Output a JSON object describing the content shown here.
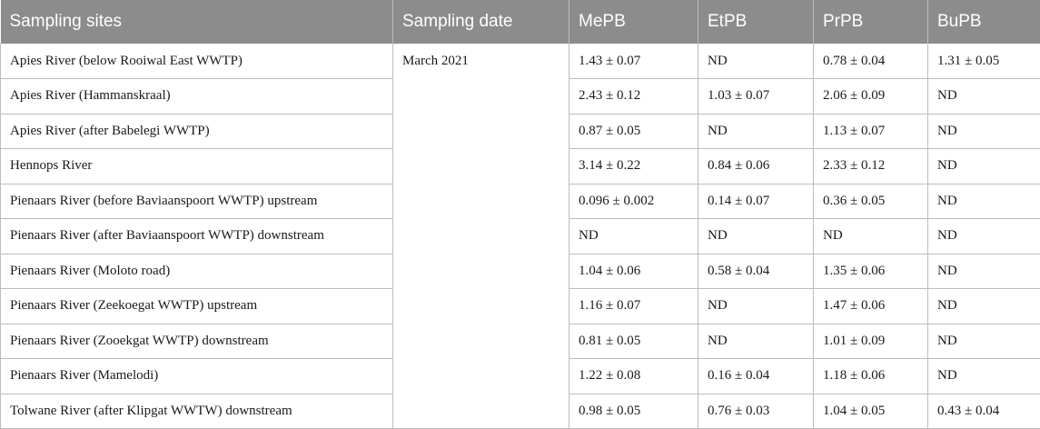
{
  "headers": [
    "Sampling sites",
    "Sampling date",
    "MePB",
    "EtPB",
    "PrPB",
    "BuPB"
  ],
  "sampling_date": "March 2021",
  "rows": [
    {
      "site": "Apies River (below Rooiwal East WWTP)",
      "mepb": "1.43 ± 0.07",
      "etpb": "ND",
      "prpb": "0.78 ± 0.04",
      "bupb": "1.31 ± 0.05"
    },
    {
      "site": "Apies River (Hammanskraal)",
      "mepb": "2.43 ± 0.12",
      "etpb": "1.03 ± 0.07",
      "prpb": "2.06 ± 0.09",
      "bupb": "ND"
    },
    {
      "site": "Apies River (after Babelegi WWTP)",
      "mepb": "0.87 ± 0.05",
      "etpb": "ND",
      "prpb": "1.13 ± 0.07",
      "bupb": "ND"
    },
    {
      "site": "Hennops River",
      "mepb": "3.14 ± 0.22",
      "etpb": "0.84 ± 0.06",
      "prpb": "2.33 ± 0.12",
      "bupb": "ND"
    },
    {
      "site": "Pienaars River (before Baviaanspoort WWTP) upstream",
      "mepb": "0.096 ± 0.002",
      "etpb": "0.14 ± 0.07",
      "prpb": "0.36 ± 0.05",
      "bupb": "ND"
    },
    {
      "site": "Pienaars River (after Baviaanspoort WWTP) downstream",
      "mepb": "ND",
      "etpb": "ND",
      "prpb": "ND",
      "bupb": "ND"
    },
    {
      "site": "Pienaars River (Moloto road)",
      "mepb": "1.04 ± 0.06",
      "etpb": "0.58 ± 0.04",
      "prpb": "1.35 ± 0.06",
      "bupb": "ND"
    },
    {
      "site": "Pienaars River (Zeekoegat WWTP) upstream",
      "mepb": "1.16 ± 0.07",
      "etpb": "ND",
      "prpb": "1.47 ± 0.06",
      "bupb": "ND"
    },
    {
      "site": "Pienaars River (Zooekgat WWTP) downstream",
      "mepb": "0.81 ± 0.05",
      "etpb": "ND",
      "prpb": "1.01 ± 0.09",
      "bupb": "ND"
    },
    {
      "site": "Pienaars River (Mamelodi)",
      "mepb": "1.22 ± 0.08",
      "etpb": "0.16 ± 0.04",
      "prpb": "1.18 ± 0.06",
      "bupb": "ND"
    },
    {
      "site": "Tolwane River (after Klipgat WWTW) downstream",
      "mepb": "0.98 ± 0.05",
      "etpb": "0.76 ± 0.03",
      "prpb": "1.04 ± 0.05",
      "bupb": "0.43 ± 0.04"
    }
  ],
  "colors": {
    "header_bg": "#8c8c8c",
    "header_text": "#ffffff",
    "grid": "#bdbdbd"
  }
}
